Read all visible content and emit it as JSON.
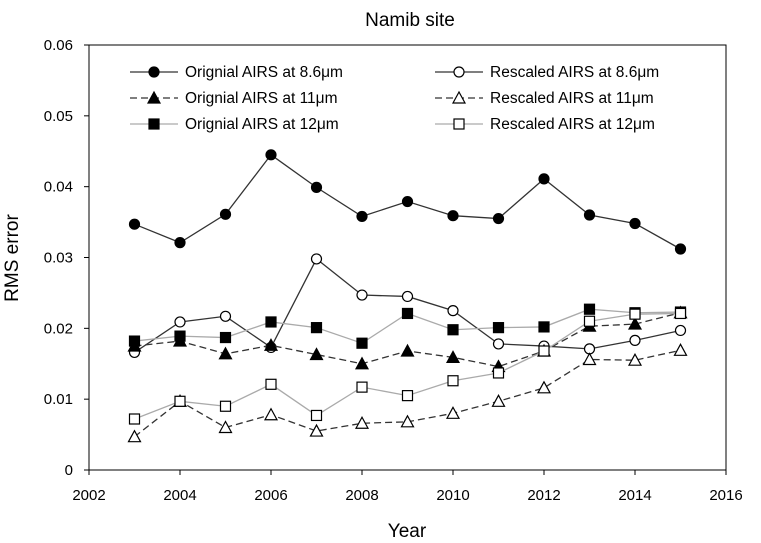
{
  "chart_data": {
    "type": "line",
    "title": "Namib site",
    "xlabel": "Year",
    "ylabel": "RMS error",
    "xlim": [
      2002,
      2016
    ],
    "ylim": [
      0,
      0.06
    ],
    "xticks": [
      2002,
      2004,
      2006,
      2008,
      2010,
      2012,
      2014,
      2016
    ],
    "yticks": [
      0,
      0.01,
      0.02,
      0.03,
      0.04,
      0.05,
      0.06
    ],
    "xtick_labels": [
      "2002",
      "2004",
      "2006",
      "2008",
      "2010",
      "2012",
      "2014",
      "2016"
    ],
    "ytick_labels": [
      "0",
      "0.01",
      "0.02",
      "0.03",
      "0.04",
      "0.05",
      "0.06"
    ],
    "grid": false,
    "legend_position": "top, inside plot, two columns",
    "x": [
      2003,
      2004,
      2005,
      2006,
      2007,
      2008,
      2009,
      2010,
      2011,
      2012,
      2013,
      2014,
      2015
    ],
    "series": [
      {
        "name": "Orignial AIRS at 8.6μm",
        "marker": "circle-filled",
        "line": "solid",
        "color": "#333333",
        "values": [
          0.0347,
          0.0321,
          0.0361,
          0.0445,
          0.0399,
          0.0358,
          0.0379,
          0.0359,
          0.0355,
          0.0411,
          0.036,
          0.0348,
          0.0312
        ]
      },
      {
        "name": "Rescaled AIRS at 8.6μm",
        "marker": "circle-open",
        "line": "solid",
        "color": "#333333",
        "values": [
          0.0166,
          0.0209,
          0.0217,
          0.0173,
          0.0298,
          0.0247,
          0.0245,
          0.0225,
          0.0178,
          0.0175,
          0.0171,
          0.0183,
          0.0197
        ]
      },
      {
        "name": "Orignial AIRS at 11μm",
        "marker": "triangle-filled",
        "line": "dashed",
        "color": "#333333",
        "values": [
          0.0175,
          0.0182,
          0.0164,
          0.0176,
          0.0163,
          0.015,
          0.0168,
          0.0159,
          0.0146,
          0.0168,
          0.0203,
          0.0206,
          0.0222
        ]
      },
      {
        "name": "Rescaled AIRS at 11μm",
        "marker": "triangle-open",
        "line": "dashed",
        "color": "#333333",
        "values": [
          0.0047,
          0.0097,
          0.006,
          0.0078,
          0.0055,
          0.0066,
          0.0068,
          0.008,
          0.0097,
          0.0116,
          0.0156,
          0.0155,
          0.0169
        ]
      },
      {
        "name": "Orignial AIRS at 12μm",
        "marker": "square-filled",
        "line": "solid",
        "color": "#aaaaaa",
        "values": [
          0.0182,
          0.0189,
          0.0187,
          0.0209,
          0.0201,
          0.0179,
          0.0221,
          0.0198,
          0.0201,
          0.0202,
          0.0227,
          0.0222,
          0.0223
        ]
      },
      {
        "name": "Rescaled AIRS at 12μm",
        "marker": "square-open",
        "line": "solid",
        "color": "#aaaaaa",
        "values": [
          0.0072,
          0.0097,
          0.009,
          0.0121,
          0.0077,
          0.0117,
          0.0105,
          0.0126,
          0.0137,
          0.0168,
          0.021,
          0.022,
          0.0221
        ]
      }
    ]
  }
}
